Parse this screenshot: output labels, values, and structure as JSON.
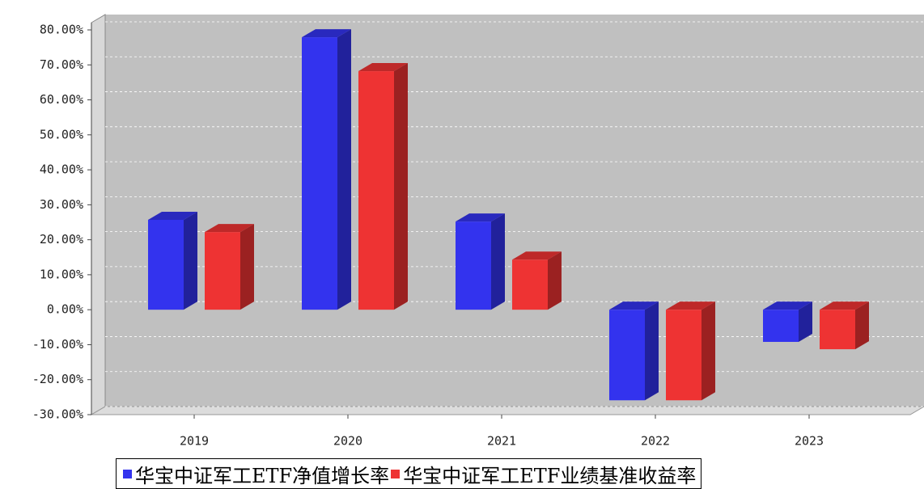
{
  "chart_data": {
    "type": "bar3d",
    "categories": [
      "2019",
      "2020",
      "2021",
      "2022",
      "2023"
    ],
    "series": [
      {
        "name": "华宝中证军工ETF净值增长率",
        "color": "#3333ee",
        "values": [
          25.7,
          77.9,
          25.2,
          -25.9,
          -9.2
        ]
      },
      {
        "name": "华宝中证军工ETF业绩基准收益率",
        "color": "#ee3333",
        "values": [
          22.2,
          68.2,
          14.3,
          -25.9,
          -11.3
        ]
      }
    ],
    "ylim": [
      -30,
      80
    ],
    "yticks": [
      {
        "value": -30,
        "label": "-30.00%"
      },
      {
        "value": -20,
        "label": "-20.00%"
      },
      {
        "value": -10,
        "label": "-10.00%"
      },
      {
        "value": 0,
        "label": "0.00%"
      },
      {
        "value": 10,
        "label": "10.00%"
      },
      {
        "value": 20,
        "label": "20.00%"
      },
      {
        "value": 30,
        "label": "30.00%"
      },
      {
        "value": 40,
        "label": "40.00%"
      },
      {
        "value": 50,
        "label": "50.00%"
      },
      {
        "value": 60,
        "label": "60.00%"
      },
      {
        "value": 70,
        "label": "70.00%"
      },
      {
        "value": 80,
        "label": "80.00%"
      }
    ],
    "grid": true
  }
}
